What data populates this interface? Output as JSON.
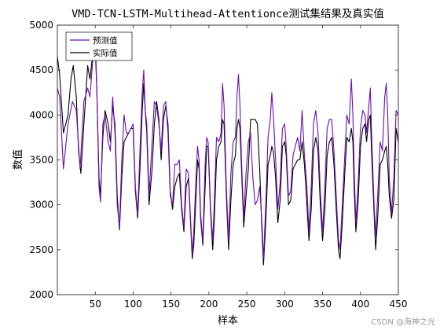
{
  "chart_data": {
    "type": "line",
    "title": "VMD-TCN-LSTM-Multihead-Attentionce测试集结果及真实值",
    "xlabel": "样本",
    "ylabel": "数值",
    "xlim": [
      0,
      450
    ],
    "ylim": [
      2000,
      5000
    ],
    "xticks": [
      "50",
      "100",
      "150",
      "200",
      "250",
      "300",
      "350",
      "400",
      "450"
    ],
    "xtick_values": [
      50,
      100,
      150,
      200,
      250,
      300,
      350,
      400,
      450
    ],
    "yticks": [
      "2000",
      "2500",
      "3000",
      "3500",
      "4000",
      "4500",
      "5000"
    ],
    "ytick_values": [
      2000,
      2500,
      3000,
      3500,
      4000,
      4500,
      5000
    ],
    "grid": false,
    "legend_position": "top-left",
    "series": [
      {
        "name": "预测值",
        "color": "#6a0dad",
        "points": [
          [
            0,
            4300
          ],
          [
            3,
            4200
          ],
          [
            8,
            3400
          ],
          [
            14,
            3900
          ],
          [
            20,
            4150
          ],
          [
            25,
            4050
          ],
          [
            30,
            3400
          ],
          [
            35,
            4150
          ],
          [
            40,
            4300
          ],
          [
            43,
            4200
          ],
          [
            48,
            4750
          ],
          [
            50,
            4900
          ],
          [
            52,
            4300
          ],
          [
            55,
            3200
          ],
          [
            57,
            3030
          ],
          [
            60,
            3900
          ],
          [
            63,
            4000
          ],
          [
            67,
            3700
          ],
          [
            70,
            3600
          ],
          [
            73,
            4200
          ],
          [
            76,
            3800
          ],
          [
            79,
            3000
          ],
          [
            82,
            2750
          ],
          [
            85,
            3500
          ],
          [
            88,
            4000
          ],
          [
            91,
            3800
          ],
          [
            94,
            3800
          ],
          [
            97,
            3850
          ],
          [
            100,
            3900
          ],
          [
            103,
            3200
          ],
          [
            106,
            2900
          ],
          [
            109,
            3600
          ],
          [
            112,
            4250
          ],
          [
            114,
            4500
          ],
          [
            116,
            4050
          ],
          [
            118,
            3900
          ],
          [
            121,
            3100
          ],
          [
            125,
            3700
          ],
          [
            128,
            4150
          ],
          [
            131,
            4100
          ],
          [
            134,
            3900
          ],
          [
            137,
            3600
          ],
          [
            140,
            4100
          ],
          [
            143,
            4150
          ],
          [
            146,
            3800
          ],
          [
            149,
            3100
          ],
          [
            152,
            3000
          ],
          [
            155,
            3450
          ],
          [
            158,
            3450
          ],
          [
            161,
            3500
          ],
          [
            164,
            3000
          ],
          [
            167,
            2750
          ],
          [
            170,
            3400
          ],
          [
            173,
            3350
          ],
          [
            176,
            2800
          ],
          [
            178,
            2450
          ],
          [
            180,
            2700
          ],
          [
            183,
            3300
          ],
          [
            185,
            3650
          ],
          [
            187,
            3500
          ],
          [
            189,
            2900
          ],
          [
            192,
            2600
          ],
          [
            195,
            3450
          ],
          [
            197,
            3750
          ],
          [
            199,
            3700
          ],
          [
            202,
            3000
          ],
          [
            205,
            2600
          ],
          [
            207,
            3000
          ],
          [
            210,
            3750
          ],
          [
            213,
            3700
          ],
          [
            216,
            3800
          ],
          [
            218,
            4350
          ],
          [
            220,
            4100
          ],
          [
            223,
            3200
          ],
          [
            226,
            2600
          ],
          [
            229,
            3350
          ],
          [
            232,
            3700
          ],
          [
            235,
            3750
          ],
          [
            237,
            4200
          ],
          [
            239,
            4450
          ],
          [
            241,
            4100
          ],
          [
            243,
            3500
          ],
          [
            246,
            2850
          ],
          [
            249,
            3350
          ],
          [
            252,
            3700
          ],
          [
            255,
            3800
          ],
          [
            258,
            3300
          ],
          [
            261,
            3000
          ],
          [
            264,
            3050
          ],
          [
            267,
            3200
          ],
          [
            270,
            2800
          ],
          [
            272,
            2400
          ],
          [
            275,
            3000
          ],
          [
            278,
            3750
          ],
          [
            281,
            3950
          ],
          [
            283,
            4250
          ],
          [
            285,
            4000
          ],
          [
            288,
            3500
          ],
          [
            291,
            2950
          ],
          [
            294,
            3250
          ],
          [
            297,
            3850
          ],
          [
            300,
            3900
          ],
          [
            302,
            3650
          ],
          [
            305,
            3100
          ],
          [
            308,
            3150
          ],
          [
            311,
            3550
          ],
          [
            314,
            3650
          ],
          [
            317,
            3750
          ],
          [
            320,
            3600
          ],
          [
            323,
            4050
          ],
          [
            326,
            3550
          ],
          [
            329,
            3250
          ],
          [
            332,
            2700
          ],
          [
            335,
            3200
          ],
          [
            338,
            3900
          ],
          [
            341,
            4050
          ],
          [
            344,
            3800
          ],
          [
            347,
            3150
          ],
          [
            350,
            2700
          ],
          [
            353,
            3200
          ],
          [
            356,
            3850
          ],
          [
            359,
            3950
          ],
          [
            362,
            3950
          ],
          [
            365,
            3600
          ],
          [
            368,
            3100
          ],
          [
            371,
            2600
          ],
          [
            373,
            2500
          ],
          [
            376,
            3000
          ],
          [
            379,
            3500
          ],
          [
            382,
            4000
          ],
          [
            385,
            3900
          ],
          [
            388,
            4400
          ],
          [
            390,
            4000
          ],
          [
            392,
            3300
          ],
          [
            394,
            2800
          ],
          [
            397,
            3250
          ],
          [
            400,
            3850
          ],
          [
            403,
            4050
          ],
          [
            406,
            4000
          ],
          [
            408,
            3800
          ],
          [
            411,
            4100
          ],
          [
            413,
            4300
          ],
          [
            415,
            3700
          ],
          [
            418,
            3000
          ],
          [
            420,
            2650
          ],
          [
            423,
            3150
          ],
          [
            426,
            3700
          ],
          [
            429,
            3600
          ],
          [
            432,
            4200
          ],
          [
            434,
            4350
          ],
          [
            436,
            4000
          ],
          [
            438,
            3300
          ],
          [
            441,
            2900
          ],
          [
            444,
            3300
          ],
          [
            447,
            4050
          ],
          [
            450,
            4000
          ]
        ]
      },
      {
        "name": "实际值",
        "color": "#000000",
        "points": [
          [
            0,
            4650
          ],
          [
            3,
            4450
          ],
          [
            8,
            3800
          ],
          [
            14,
            4000
          ],
          [
            18,
            4400
          ],
          [
            21,
            4550
          ],
          [
            25,
            4200
          ],
          [
            28,
            3600
          ],
          [
            31,
            3350
          ],
          [
            35,
            3900
          ],
          [
            40,
            4550
          ],
          [
            43,
            4400
          ],
          [
            47,
            4700
          ],
          [
            50,
            4750
          ],
          [
            52,
            4300
          ],
          [
            55,
            3300
          ],
          [
            57,
            3100
          ],
          [
            60,
            3750
          ],
          [
            63,
            4050
          ],
          [
            67,
            3900
          ],
          [
            70,
            3700
          ],
          [
            73,
            4100
          ],
          [
            76,
            3900
          ],
          [
            79,
            3100
          ],
          [
            82,
            2720
          ],
          [
            85,
            3300
          ],
          [
            88,
            3700
          ],
          [
            91,
            3750
          ],
          [
            94,
            3800
          ],
          [
            97,
            3850
          ],
          [
            100,
            3850
          ],
          [
            103,
            3150
          ],
          [
            106,
            2850
          ],
          [
            109,
            3400
          ],
          [
            112,
            4050
          ],
          [
            114,
            4350
          ],
          [
            116,
            4050
          ],
          [
            118,
            3800
          ],
          [
            121,
            3000
          ],
          [
            125,
            3400
          ],
          [
            128,
            3900
          ],
          [
            131,
            4150
          ],
          [
            134,
            3950
          ],
          [
            137,
            3500
          ],
          [
            140,
            3950
          ],
          [
            143,
            4100
          ],
          [
            146,
            3900
          ],
          [
            149,
            3150
          ],
          [
            152,
            2950
          ],
          [
            155,
            3200
          ],
          [
            158,
            3300
          ],
          [
            161,
            3350
          ],
          [
            164,
            2950
          ],
          [
            167,
            2700
          ],
          [
            170,
            3200
          ],
          [
            173,
            3300
          ],
          [
            176,
            2750
          ],
          [
            178,
            2400
          ],
          [
            180,
            2550
          ],
          [
            183,
            3100
          ],
          [
            185,
            3500
          ],
          [
            187,
            3400
          ],
          [
            189,
            2850
          ],
          [
            192,
            2550
          ],
          [
            195,
            3200
          ],
          [
            197,
            3650
          ],
          [
            199,
            3650
          ],
          [
            202,
            2950
          ],
          [
            205,
            2500
          ],
          [
            207,
            2800
          ],
          [
            210,
            3500
          ],
          [
            213,
            3650
          ],
          [
            216,
            3700
          ],
          [
            218,
            3950
          ],
          [
            220,
            3900
          ],
          [
            223,
            3100
          ],
          [
            226,
            2500
          ],
          [
            229,
            3050
          ],
          [
            232,
            3450
          ],
          [
            235,
            3550
          ],
          [
            237,
            3850
          ],
          [
            239,
            3950
          ],
          [
            241,
            3850
          ],
          [
            243,
            3400
          ],
          [
            246,
            2750
          ],
          [
            249,
            3100
          ],
          [
            252,
            3400
          ],
          [
            255,
            3950
          ],
          [
            258,
            3950
          ],
          [
            261,
            3950
          ],
          [
            264,
            3900
          ],
          [
            267,
            3400
          ],
          [
            270,
            2700
          ],
          [
            272,
            2330
          ],
          [
            275,
            2800
          ],
          [
            278,
            3450
          ],
          [
            281,
            3550
          ],
          [
            283,
            3650
          ],
          [
            285,
            3600
          ],
          [
            288,
            3300
          ],
          [
            291,
            2800
          ],
          [
            294,
            3050
          ],
          [
            297,
            3650
          ],
          [
            300,
            3700
          ],
          [
            302,
            3550
          ],
          [
            305,
            3000
          ],
          [
            308,
            3050
          ],
          [
            311,
            3400
          ],
          [
            314,
            3450
          ],
          [
            317,
            3500
          ],
          [
            320,
            3500
          ],
          [
            323,
            3700
          ],
          [
            326,
            3450
          ],
          [
            329,
            3050
          ],
          [
            332,
            2600
          ],
          [
            335,
            2950
          ],
          [
            338,
            3600
          ],
          [
            341,
            3750
          ],
          [
            344,
            3600
          ],
          [
            347,
            3000
          ],
          [
            350,
            2600
          ],
          [
            353,
            2950
          ],
          [
            356,
            3550
          ],
          [
            359,
            3700
          ],
          [
            362,
            3750
          ],
          [
            365,
            3450
          ],
          [
            368,
            2950
          ],
          [
            371,
            2500
          ],
          [
            373,
            2400
          ],
          [
            376,
            2800
          ],
          [
            379,
            3300
          ],
          [
            382,
            3750
          ],
          [
            385,
            3700
          ],
          [
            388,
            3850
          ],
          [
            390,
            3700
          ],
          [
            392,
            3100
          ],
          [
            394,
            2700
          ],
          [
            397,
            3050
          ],
          [
            400,
            3650
          ],
          [
            403,
            3850
          ],
          [
            406,
            3900
          ],
          [
            408,
            3700
          ],
          [
            411,
            3950
          ],
          [
            413,
            4000
          ],
          [
            415,
            3500
          ],
          [
            418,
            2900
          ],
          [
            420,
            2500
          ],
          [
            423,
            2900
          ],
          [
            426,
            3450
          ],
          [
            429,
            3500
          ],
          [
            432,
            3600
          ],
          [
            434,
            3650
          ],
          [
            436,
            3450
          ],
          [
            438,
            3100
          ],
          [
            441,
            2850
          ],
          [
            444,
            3050
          ],
          [
            447,
            3850
          ],
          [
            450,
            3700
          ]
        ]
      }
    ]
  },
  "watermark": "CSDN @海神之光"
}
